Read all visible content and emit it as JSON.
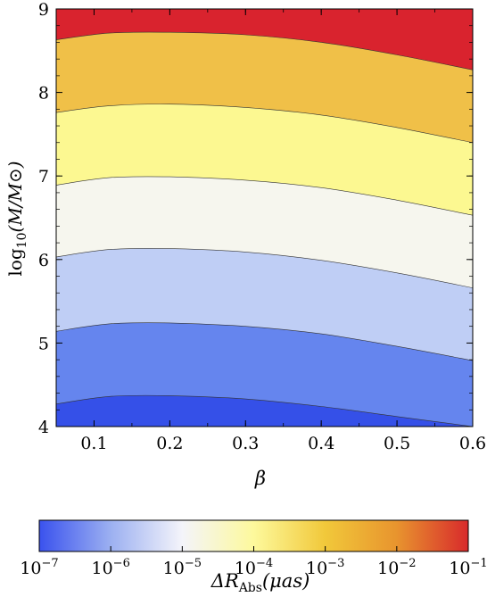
{
  "chart_data": {
    "type": "contour",
    "xlabel": "β",
    "ylabel": "log10(M/M⊙)",
    "xlim": [
      0.05,
      0.6
    ],
    "ylim": [
      4,
      9
    ],
    "x_ticks": [
      "0.1",
      "0.2",
      "0.3",
      "0.4",
      "0.5",
      "0.6"
    ],
    "y_ticks": [
      "4",
      "5",
      "6",
      "7",
      "8",
      "9"
    ],
    "contour_levels": [
      {
        "boundary_y": [
          4.27,
          4.36,
          4.37,
          4.33,
          4.24,
          4.12,
          4.0
        ],
        "color": "#3550e8"
      },
      {
        "boundary_y": [
          5.14,
          5.23,
          5.24,
          5.2,
          5.11,
          4.96,
          4.79
        ],
        "color": "#6585ee"
      },
      {
        "boundary_y": [
          6.03,
          6.12,
          6.13,
          6.09,
          5.99,
          5.84,
          5.66
        ],
        "color": "#bfcef5"
      },
      {
        "boundary_y": [
          6.89,
          6.98,
          6.99,
          6.95,
          6.86,
          6.71,
          6.53
        ],
        "color": "#f6f6ee"
      },
      {
        "boundary_y": [
          7.76,
          7.84,
          7.86,
          7.82,
          7.73,
          7.58,
          7.4
        ],
        "color": "#fcf891"
      },
      {
        "boundary_y": [
          8.63,
          8.71,
          8.72,
          8.69,
          8.6,
          8.45,
          8.27
        ],
        "color": "#f0c048"
      },
      {
        "boundary_y": null,
        "color": "#d9232e"
      }
    ],
    "boundary_x": [
      0.05,
      0.12,
      0.2,
      0.3,
      0.4,
      0.5,
      0.6
    ],
    "colorbar": {
      "label": "ΔR_Abs(μas)",
      "ticks": [
        "10^-7",
        "10^-6",
        "10^-5",
        "10^-4",
        "10^-3",
        "10^-2",
        "10^-1"
      ],
      "gradient": [
        "#3a52ee",
        "#9cb0f1",
        "#f4f4fa",
        "#fdf99c",
        "#f1c83a",
        "#e8942e",
        "#d82a2c"
      ]
    }
  }
}
